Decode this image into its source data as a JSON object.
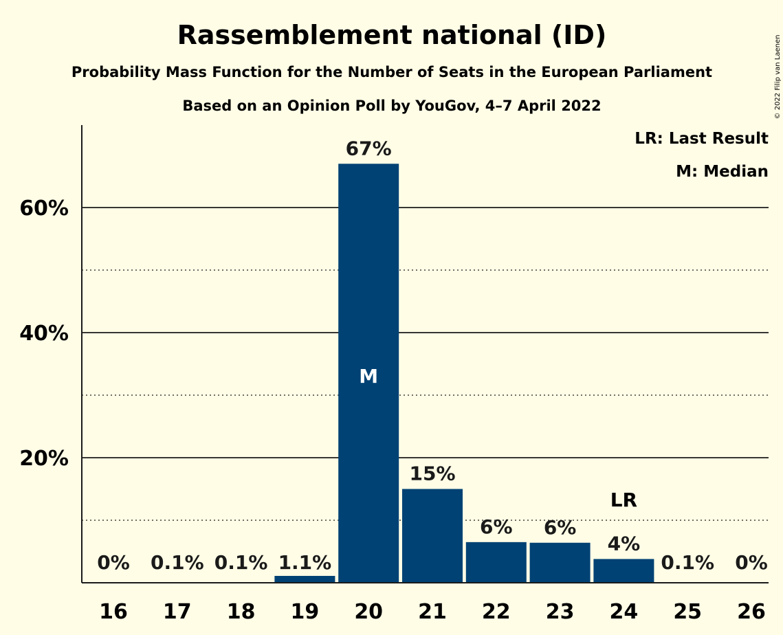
{
  "title": "Rassemblement national (ID)",
  "subtitle": "Probability Mass Function for the Number of Seats in the European Parliament",
  "subtitle2": "Based on an Opinion Poll by YouGov, 4–7 April 2022",
  "copyright": "© 2022 Filip van Laenen",
  "legend": {
    "last_result": "LR: Last Result",
    "median": "M: Median"
  },
  "colors": {
    "bar": "#004274",
    "background": "#fffde6",
    "text": "#1a1a1a"
  },
  "chart_data": {
    "type": "bar",
    "categories": [
      "16",
      "17",
      "18",
      "19",
      "20",
      "21",
      "22",
      "23",
      "24",
      "25",
      "26"
    ],
    "values": [
      0,
      0.1,
      0.1,
      1.1,
      67,
      15,
      6.5,
      6.4,
      3.8,
      0.1,
      0
    ],
    "value_labels": [
      "0%",
      "0.1%",
      "0.1%",
      "1.1%",
      "67%",
      "15%",
      "6%",
      "6%",
      "4%",
      "0.1%",
      "0%"
    ],
    "y_ticks": [
      {
        "value": 20,
        "label": "20%"
      },
      {
        "value": 40,
        "label": "40%"
      },
      {
        "value": 60,
        "label": "60%"
      }
    ],
    "minor_gridlines": [
      10,
      30,
      50
    ],
    "ylim": [
      0,
      73
    ],
    "median": {
      "category": "20",
      "label": "M"
    },
    "last_result": {
      "category": "24",
      "label": "LR"
    },
    "legend_position": "top-right"
  }
}
